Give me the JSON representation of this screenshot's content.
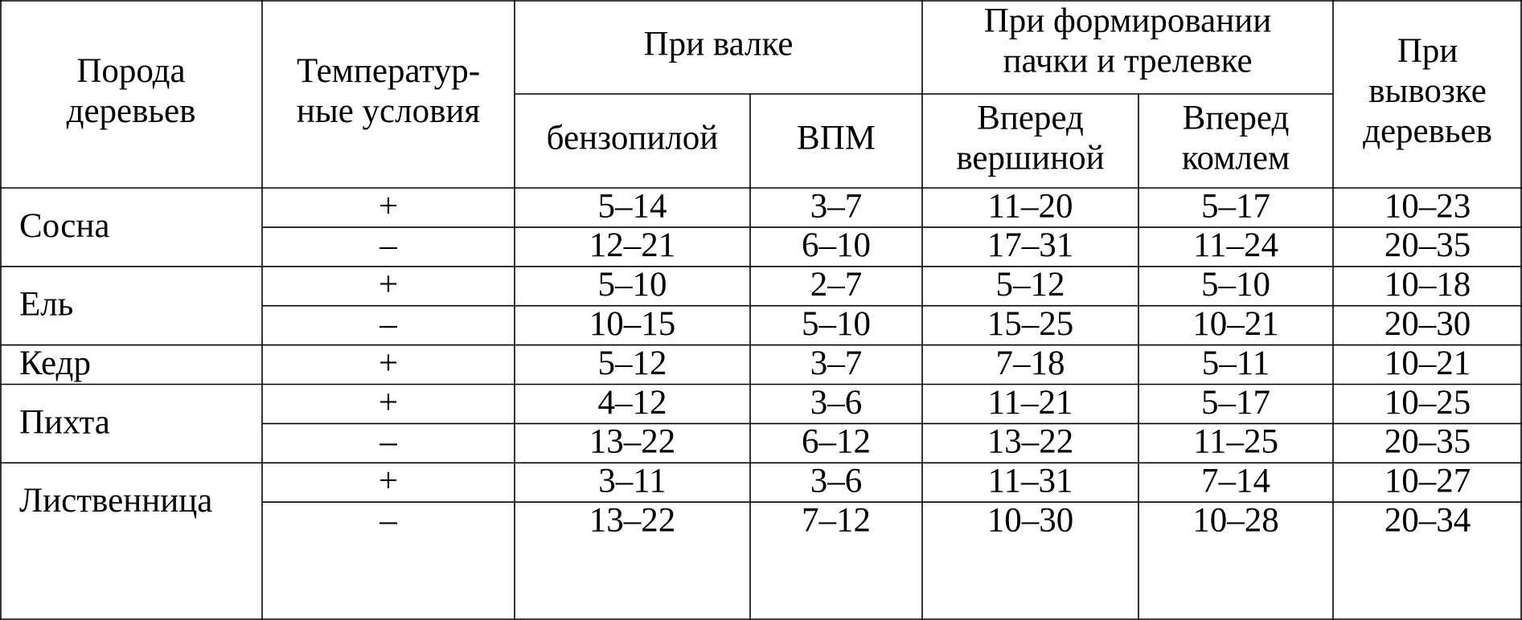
{
  "header": {
    "species": [
      "Порода",
      "деревьев"
    ],
    "temperature": [
      "Температур-",
      "ные условия"
    ],
    "felling": {
      "title": "При валке",
      "chainsaw": "бензопилой",
      "vpm": "ВПМ"
    },
    "skidding": {
      "title": [
        "При формировании",
        "пачки и трелевке"
      ],
      "top_first": [
        "Вперед",
        "вершиной"
      ],
      "butt_first": [
        "Вперед",
        "комлем"
      ]
    },
    "hauling": [
      "При",
      "вывозке",
      "деревьев"
    ]
  },
  "groups": [
    {
      "species": "Сосна",
      "rows": [
        [
          "+",
          "5–14",
          "3–7",
          "11–20",
          "5–17",
          "10–23"
        ],
        [
          "–",
          "12–21",
          "6–10",
          "17–31",
          "11–24",
          "20–35"
        ]
      ]
    },
    {
      "species": "Ель",
      "rows": [
        [
          "+",
          "5–10",
          "2–7",
          "5–12",
          "5–10",
          "10–18"
        ],
        [
          "–",
          "10–15",
          "5–10",
          "15–25",
          "10–21",
          "20–30"
        ]
      ]
    },
    {
      "species": "Кедр",
      "rows": [
        [
          "+",
          "5–12",
          "3–7",
          "7–18",
          "5–11",
          "10–21"
        ]
      ]
    },
    {
      "species": "Пихта",
      "rows": [
        [
          "+",
          "4–12",
          "3–6",
          "11–21",
          "5–17",
          "10–25"
        ],
        [
          "–",
          "13–22",
          "6–12",
          "13–22",
          "11–25",
          "20–35"
        ]
      ]
    },
    {
      "species": "Лиственница",
      "rows": [
        [
          "+",
          "3–11",
          "3–6",
          "11–31",
          "7–14",
          "10–27"
        ],
        [
          "–",
          "13–22",
          "7–12",
          "10–30",
          "10–28",
          "20–34"
        ]
      ]
    }
  ]
}
